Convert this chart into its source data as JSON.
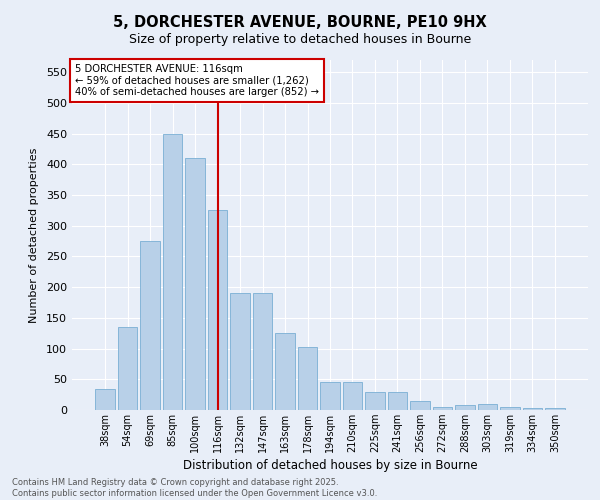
{
  "title1": "5, DORCHESTER AVENUE, BOURNE, PE10 9HX",
  "title2": "Size of property relative to detached houses in Bourne",
  "xlabel": "Distribution of detached houses by size in Bourne",
  "ylabel": "Number of detached properties",
  "categories": [
    "38sqm",
    "54sqm",
    "69sqm",
    "85sqm",
    "100sqm",
    "116sqm",
    "132sqm",
    "147sqm",
    "163sqm",
    "178sqm",
    "194sqm",
    "210sqm",
    "225sqm",
    "241sqm",
    "256sqm",
    "272sqm",
    "288sqm",
    "303sqm",
    "319sqm",
    "334sqm",
    "350sqm"
  ],
  "values": [
    35,
    135,
    275,
    450,
    410,
    325,
    190,
    190,
    125,
    103,
    46,
    46,
    30,
    30,
    15,
    5,
    8,
    10,
    5,
    4,
    4
  ],
  "bar_color": "#b8d0e8",
  "bar_edge_color": "#7aafd4",
  "vline_x": 5,
  "vline_color": "#cc0000",
  "annotation_title": "5 DORCHESTER AVENUE: 116sqm",
  "annotation_line1": "← 59% of detached houses are smaller (1,262)",
  "annotation_line2": "40% of semi-detached houses are larger (852) →",
  "annotation_box_color": "#cc0000",
  "ylim": [
    0,
    570
  ],
  "yticks": [
    0,
    50,
    100,
    150,
    200,
    250,
    300,
    350,
    400,
    450,
    500,
    550
  ],
  "background_color": "#e8eef8",
  "grid_color": "#ffffff",
  "footer1": "Contains HM Land Registry data © Crown copyright and database right 2025.",
  "footer2": "Contains public sector information licensed under the Open Government Licence v3.0.",
  "figsize": [
    6.0,
    5.0
  ],
  "dpi": 100
}
